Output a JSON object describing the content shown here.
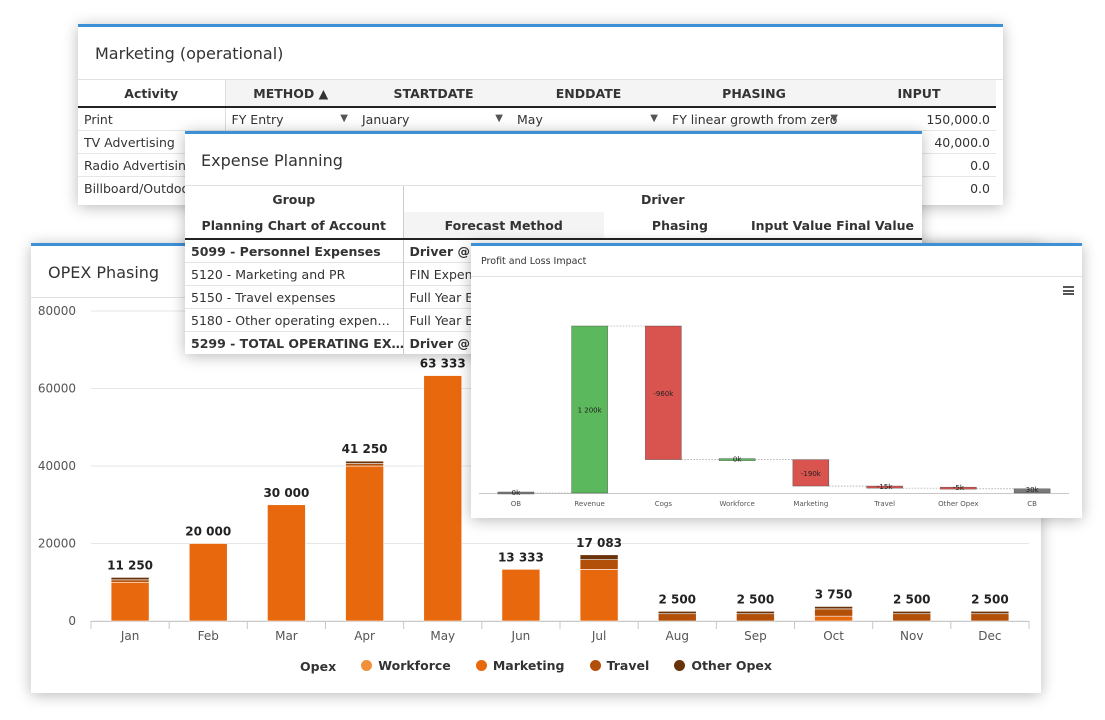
{
  "marketing": {
    "title": "Marketing (operational)",
    "headers": [
      "Activity",
      "METHOD ▲",
      "STARTDATE",
      "ENDDATE",
      "PHASING",
      "INPUT"
    ],
    "rows": [
      {
        "activity": "Print",
        "method": "FY Entry",
        "start": "January",
        "end": "May",
        "phasing": "FY linear growth from zero",
        "input": "150,000.0"
      },
      {
        "activity": "TV Advertising",
        "method": "",
        "start": "",
        "end": "",
        "phasing": "",
        "input": "40,000.0"
      },
      {
        "activity": "Radio Advertising",
        "method": "",
        "start": "",
        "end": "",
        "phasing": "",
        "input": "0.0"
      },
      {
        "activity": "Billboard/Outdoor",
        "method": "",
        "start": "",
        "end": "",
        "phasing": "",
        "input": "0.0"
      }
    ]
  },
  "expense": {
    "title": "Expense Planning",
    "group_header": "Group",
    "driver_header": "Driver",
    "coa_header": "Planning Chart of Account",
    "forecast_header": "Forecast Method",
    "phasing_header": "Phasing",
    "input_header": "Input Value Final Value",
    "rows": [
      {
        "account": "5099 - Personnel Expenses",
        "method": "Driver @Lea",
        "bold": true
      },
      {
        "account": "5120 - Marketing and PR",
        "method": "FIN Expense",
        "bold": false
      },
      {
        "account": "5150 - Travel expenses",
        "method": "Full Year Est",
        "bold": false
      },
      {
        "account": "5180 - Other operating expen…",
        "method": "Full Year Est",
        "bold": false
      },
      {
        "account": "5299 - TOTAL OPERATING EX…",
        "method": "Driver @Lea",
        "bold": true
      }
    ]
  },
  "opex": {
    "title": "OPEX Phasing",
    "legend_title": "Opex",
    "colors": {
      "Workforce": "#f0903a",
      "Marketing": "#e8680e",
      "Travel": "#b2500a",
      "Other Opex": "#6a3208"
    },
    "chart_data": {
      "type": "bar",
      "stacked": true,
      "categories": [
        "Jan",
        "Feb",
        "Mar",
        "Apr",
        "May",
        "Jun",
        "Jul",
        "Aug",
        "Sep",
        "Oct",
        "Nov",
        "Dec"
      ],
      "series": [
        {
          "name": "Workforce",
          "values": [
            0,
            0,
            0,
            0,
            0,
            0,
            0,
            0,
            0,
            0,
            0,
            0
          ]
        },
        {
          "name": "Marketing",
          "values": [
            10000,
            20000,
            30000,
            40000,
            63333,
            13333,
            13333,
            0,
            0,
            1250,
            0,
            0
          ]
        },
        {
          "name": "Travel",
          "values": [
            625,
            0,
            0,
            625,
            0,
            0,
            2500,
            1875,
            1875,
            1875,
            1875,
            1875
          ]
        },
        {
          "name": "Other Opex",
          "values": [
            625,
            0,
            0,
            625,
            0,
            0,
            1250,
            625,
            625,
            625,
            625,
            625
          ]
        }
      ],
      "totals": [
        "11 250",
        "20 000",
        "30 000",
        "41 250",
        "63 333",
        "13 333",
        "17 083",
        "2 500",
        "2 500",
        "3 750",
        "2 500",
        "2 500"
      ],
      "yticks": [
        "0",
        "20000",
        "40000",
        "60000",
        "80000"
      ],
      "ylim": [
        0,
        80000
      ]
    }
  },
  "pl": {
    "title": "Profit and Loss Impact",
    "menu_icon": "hamburger-menu-icon",
    "chart_data": {
      "type": "waterfall",
      "categories": [
        "OB",
        "Revenue",
        "Cogs",
        "Workforce",
        "Marketing",
        "Travel",
        "Other Opex",
        "CB"
      ],
      "values": [
        0,
        1200,
        -960,
        0,
        -190,
        -15,
        -5,
        30
      ],
      "labels": [
        "0k",
        "1 200k",
        "-960k",
        "0k",
        "-190k",
        "-15k",
        "-5k",
        "30k"
      ],
      "colors": {
        "positive": "#5cb85c",
        "negative": "#d9534f",
        "total": "#7a7a7a"
      },
      "unit": "k"
    }
  }
}
